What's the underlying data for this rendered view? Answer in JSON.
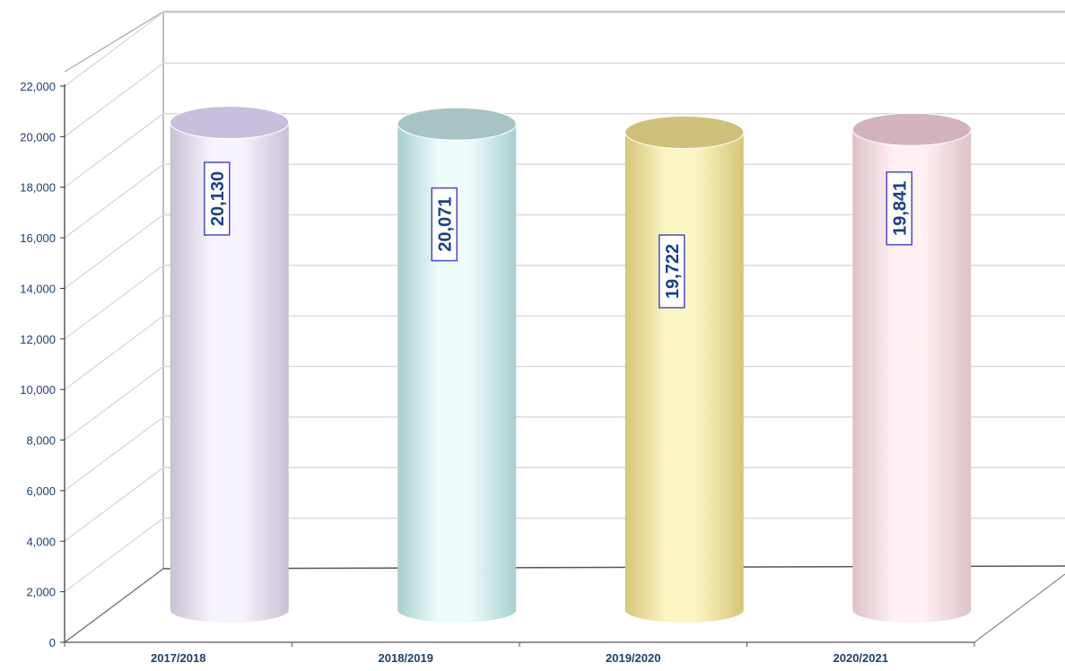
{
  "chart_data": {
    "type": "bar",
    "style": "3d-cylinder",
    "categories": [
      "2017/2018",
      "2018/2019",
      "2019/2020",
      "2020/2021"
    ],
    "values": [
      20130,
      20071,
      19722,
      19841
    ],
    "value_labels": [
      "20,130",
      "20,071",
      "19,722",
      "19,841"
    ],
    "y_ticks": [
      0,
      2000,
      4000,
      6000,
      8000,
      10000,
      12000,
      14000,
      16000,
      18000,
      20000,
      22000
    ],
    "y_tick_labels": [
      "0",
      "2,000",
      "4,000",
      "6,000",
      "8,000",
      "10,000",
      "12,000",
      "14,000",
      "16,000",
      "18,000",
      "20,000",
      "22,000"
    ],
    "ylim": [
      0,
      22000
    ],
    "grid": true,
    "legend": "none",
    "colors": [
      {
        "side": "#c9c0d6",
        "mid": "#f7f3fc",
        "top": "#c7bfdb"
      },
      {
        "side": "#a8cfcf",
        "mid": "#effcfc",
        "top": "#a7c3c4"
      },
      {
        "side": "#d6c67a",
        "mid": "#fbf5c2",
        "top": "#cfc07a"
      },
      {
        "side": "#dcc3c8",
        "mid": "#fff0f3",
        "top": "#d4b3bc"
      }
    ]
  }
}
